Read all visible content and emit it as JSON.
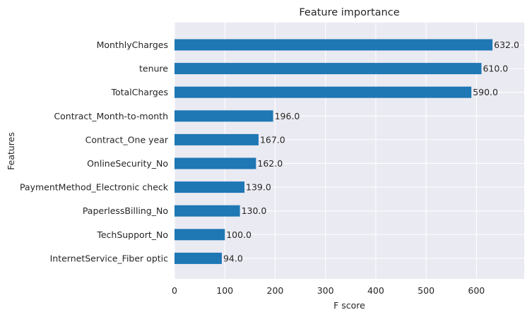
{
  "chart_data": {
    "type": "bar",
    "orientation": "horizontal",
    "title": "Feature importance",
    "xlabel": "F score",
    "ylabel": "Features",
    "xlim": [
      0,
      695
    ],
    "xticks": [
      0,
      100,
      200,
      300,
      400,
      500,
      600
    ],
    "grid": true,
    "bar_color": "#1f77b4",
    "background_color": "#eaeaf2",
    "categories": [
      "MonthlyCharges",
      "tenure",
      "TotalCharges",
      "Contract_Month-to-month",
      "Contract_One year",
      "OnlineSecurity_No",
      "PaymentMethod_Electronic check",
      "PaperlessBilling_No",
      "TechSupport_No",
      "InternetService_Fiber optic"
    ],
    "values": [
      632.0,
      610.0,
      590.0,
      196.0,
      167.0,
      162.0,
      139.0,
      130.0,
      100.0,
      94.0
    ],
    "data_labels": [
      "632.0",
      "610.0",
      "590.0",
      "196.0",
      "167.0",
      "162.0",
      "139.0",
      "130.0",
      "100.0",
      "94.0"
    ]
  }
}
